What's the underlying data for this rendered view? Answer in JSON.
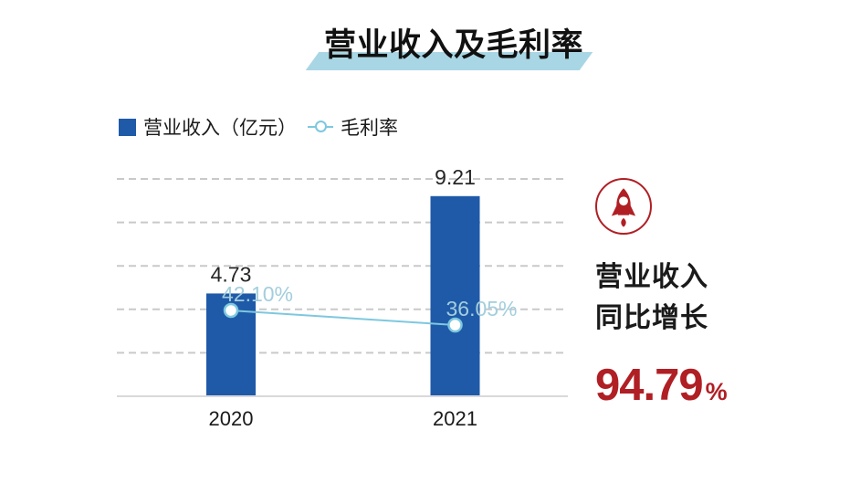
{
  "title": {
    "text": "营业收入及毛利率"
  },
  "legend": [
    {
      "label": "营业收入（亿元）",
      "marker": "square"
    },
    {
      "label": "毛利率",
      "marker": "line-circle"
    }
  ],
  "chart_data": {
    "type": "bar",
    "title": "营业收入及毛利率",
    "categories": [
      "2020",
      "2021"
    ],
    "series": [
      {
        "name": "营业收入（亿元）",
        "chart_type": "bar",
        "values": [
          4.73,
          9.21
        ],
        "data_labels": [
          "4.73",
          "9.21"
        ],
        "color": "#1f5aa8"
      },
      {
        "name": "毛利率",
        "chart_type": "line",
        "values": [
          42.1,
          36.05
        ],
        "data_labels": [
          "42.10%",
          "36.05%"
        ],
        "color": "#7ec8df",
        "label_color": "#a3cedd"
      }
    ],
    "ylim": [
      0,
      10
    ],
    "gridline_values": [
      2,
      4,
      6,
      8,
      10
    ],
    "grid_style": "horizontal-dashed",
    "legend_position": "top-left",
    "xlabel": "",
    "ylabel": ""
  },
  "highlight_panel": {
    "icon": "rocket-icon",
    "caption_line1": "营业收入",
    "caption_line2": "同比增长",
    "value": "94.79",
    "value_suffix": "%",
    "accent_color": "#b01f24"
  },
  "colors": {
    "bar_blue": "#1f5aa8",
    "line_blue": "#7ec8df",
    "percent_label_blue": "#a3cedd",
    "title_highlight_blue": "#a9d6e4",
    "accent_red": "#b01f24",
    "gridline_gray": "#c9c9c9",
    "axis_gray": "#d9d9d9",
    "text_dark": "#262626"
  }
}
